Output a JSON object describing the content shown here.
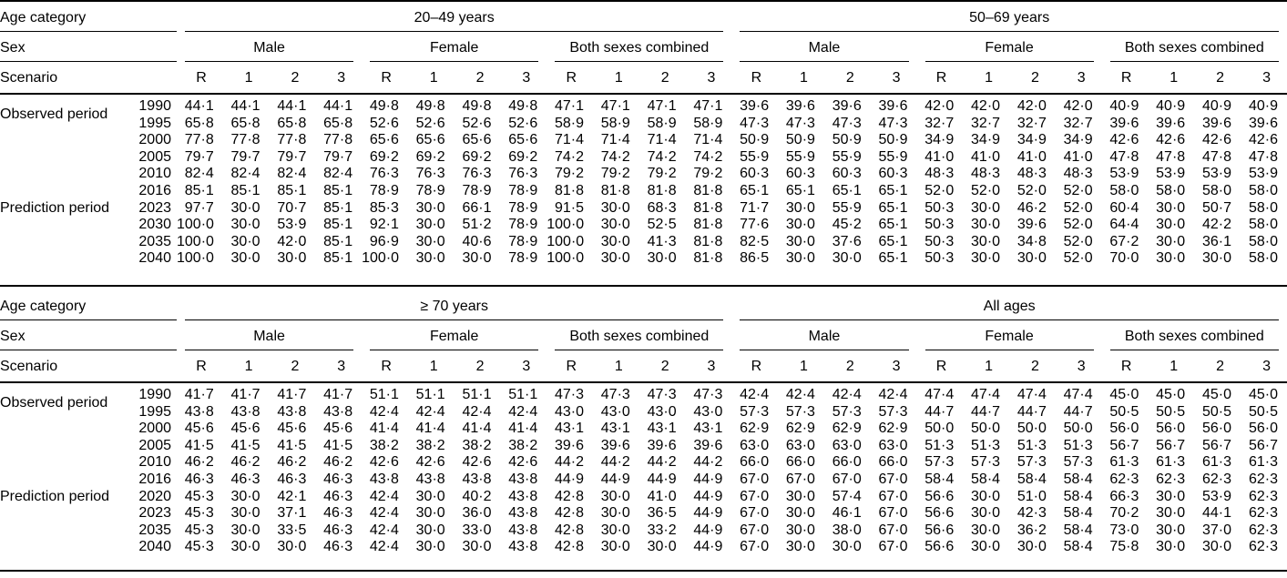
{
  "colors": {
    "text": "#000000",
    "rule": "#000000",
    "background": "#ffffff"
  },
  "labels": {
    "age_category": "Age category",
    "sex": "Sex",
    "scenario": "Scenario",
    "observed_period": "Observed period",
    "prediction_period": "Prediction period"
  },
  "sex_groups": [
    "Male",
    "Female",
    "Both sexes combined"
  ],
  "scenarios": [
    "R",
    "1",
    "2",
    "3"
  ],
  "panels": [
    {
      "age_groups": [
        "20–49 years",
        "50–69 years"
      ],
      "observed_rows": [
        {
          "year": "1990",
          "values": [
            "44·1",
            "44·1",
            "44·1",
            "44·1",
            "49·8",
            "49·8",
            "49·8",
            "49·8",
            "47·1",
            "47·1",
            "47·1",
            "47·1",
            "39·6",
            "39·6",
            "39·6",
            "39·6",
            "42·0",
            "42·0",
            "42·0",
            "42·0",
            "40·9",
            "40·9",
            "40·9",
            "40·9"
          ]
        },
        {
          "year": "1995",
          "values": [
            "65·8",
            "65·8",
            "65·8",
            "65·8",
            "52·6",
            "52·6",
            "52·6",
            "52·6",
            "58·9",
            "58·9",
            "58·9",
            "58·9",
            "47·3",
            "47·3",
            "47·3",
            "47·3",
            "32·7",
            "32·7",
            "32·7",
            "32·7",
            "39·6",
            "39·6",
            "39·6",
            "39·6"
          ]
        },
        {
          "year": "2000",
          "values": [
            "77·8",
            "77·8",
            "77·8",
            "77·8",
            "65·6",
            "65·6",
            "65·6",
            "65·6",
            "71·4",
            "71·4",
            "71·4",
            "71·4",
            "50·9",
            "50·9",
            "50·9",
            "50·9",
            "34·9",
            "34·9",
            "34·9",
            "34·9",
            "42·6",
            "42·6",
            "42·6",
            "42·6"
          ]
        },
        {
          "year": "2005",
          "values": [
            "79·7",
            "79·7",
            "79·7",
            "79·7",
            "69·2",
            "69·2",
            "69·2",
            "69·2",
            "74·2",
            "74·2",
            "74·2",
            "74·2",
            "55·9",
            "55·9",
            "55·9",
            "55·9",
            "41·0",
            "41·0",
            "41·0",
            "41·0",
            "47·8",
            "47·8",
            "47·8",
            "47·8"
          ]
        },
        {
          "year": "2010",
          "values": [
            "82·4",
            "82·4",
            "82·4",
            "82·4",
            "76·3",
            "76·3",
            "76·3",
            "76·3",
            "79·2",
            "79·2",
            "79·2",
            "79·2",
            "60·3",
            "60·3",
            "60·3",
            "60·3",
            "48·3",
            "48·3",
            "48·3",
            "48·3",
            "53·9",
            "53·9",
            "53·9",
            "53·9"
          ]
        },
        {
          "year": "2016",
          "values": [
            "85·1",
            "85·1",
            "85·1",
            "85·1",
            "78·9",
            "78·9",
            "78·9",
            "78·9",
            "81·8",
            "81·8",
            "81·8",
            "81·8",
            "65·1",
            "65·1",
            "65·1",
            "65·1",
            "52·0",
            "52·0",
            "52·0",
            "52·0",
            "58·0",
            "58·0",
            "58·0",
            "58·0"
          ]
        }
      ],
      "prediction_rows": [
        {
          "year": "2023",
          "values": [
            "97·7",
            "30·0",
            "70·7",
            "85·1",
            "85·3",
            "30·0",
            "66·1",
            "78·9",
            "91·5",
            "30·0",
            "68·3",
            "81·8",
            "71·7",
            "30·0",
            "55·9",
            "65·1",
            "50·3",
            "30·0",
            "46·2",
            "52·0",
            "60·4",
            "30·0",
            "50·7",
            "58·0"
          ]
        },
        {
          "year": "2030",
          "values": [
            "100·0",
            "30·0",
            "53·9",
            "85·1",
            "92·1",
            "30·0",
            "51·2",
            "78·9",
            "100·0",
            "30·0",
            "52·5",
            "81·8",
            "77·6",
            "30·0",
            "45·2",
            "65·1",
            "50·3",
            "30·0",
            "39·6",
            "52·0",
            "64·4",
            "30·0",
            "42·2",
            "58·0"
          ]
        },
        {
          "year": "2035",
          "values": [
            "100·0",
            "30·0",
            "42·0",
            "85·1",
            "96·9",
            "30·0",
            "40·6",
            "78·9",
            "100·0",
            "30·0",
            "41·3",
            "81·8",
            "82·5",
            "30·0",
            "37·6",
            "65·1",
            "50·3",
            "30·0",
            "34·8",
            "52·0",
            "67·2",
            "30·0",
            "36·1",
            "58·0"
          ]
        },
        {
          "year": "2040",
          "values": [
            "100·0",
            "30·0",
            "30·0",
            "85·1",
            "100·0",
            "30·0",
            "30·0",
            "78·9",
            "100·0",
            "30·0",
            "30·0",
            "81·8",
            "86·5",
            "30·0",
            "30·0",
            "65·1",
            "50·3",
            "30·0",
            "30·0",
            "52·0",
            "70·0",
            "30·0",
            "30·0",
            "58·0"
          ]
        }
      ]
    },
    {
      "age_groups": [
        "≥ 70 years",
        "All ages"
      ],
      "observed_rows": [
        {
          "year": "1990",
          "values": [
            "41·7",
            "41·7",
            "41·7",
            "41·7",
            "51·1",
            "51·1",
            "51·1",
            "51·1",
            "47·3",
            "47·3",
            "47·3",
            "47·3",
            "42·4",
            "42·4",
            "42·4",
            "42·4",
            "47·4",
            "47·4",
            "47·4",
            "47·4",
            "45·0",
            "45·0",
            "45·0",
            "45·0"
          ]
        },
        {
          "year": "1995",
          "values": [
            "43·8",
            "43·8",
            "43·8",
            "43·8",
            "42·4",
            "42·4",
            "42·4",
            "42·4",
            "43·0",
            "43·0",
            "43·0",
            "43·0",
            "57·3",
            "57·3",
            "57·3",
            "57·3",
            "44·7",
            "44·7",
            "44·7",
            "44·7",
            "50·5",
            "50·5",
            "50·5",
            "50·5"
          ]
        },
        {
          "year": "2000",
          "values": [
            "45·6",
            "45·6",
            "45·6",
            "45·6",
            "41·4",
            "41·4",
            "41·4",
            "41·4",
            "43·1",
            "43·1",
            "43·1",
            "43·1",
            "62·9",
            "62·9",
            "62·9",
            "62·9",
            "50·0",
            "50·0",
            "50·0",
            "50·0",
            "56·0",
            "56·0",
            "56·0",
            "56·0"
          ]
        },
        {
          "year": "2005",
          "values": [
            "41·5",
            "41·5",
            "41·5",
            "41·5",
            "38·2",
            "38·2",
            "38·2",
            "38·2",
            "39·6",
            "39·6",
            "39·6",
            "39·6",
            "63·0",
            "63·0",
            "63·0",
            "63·0",
            "51·3",
            "51·3",
            "51·3",
            "51·3",
            "56·7",
            "56·7",
            "56·7",
            "56·7"
          ]
        },
        {
          "year": "2010",
          "values": [
            "46·2",
            "46·2",
            "46·2",
            "46·2",
            "42·6",
            "42·6",
            "42·6",
            "42·6",
            "44·2",
            "44·2",
            "44·2",
            "44·2",
            "66·0",
            "66·0",
            "66·0",
            "66·0",
            "57·3",
            "57·3",
            "57·3",
            "57·3",
            "61·3",
            "61·3",
            "61·3",
            "61·3"
          ]
        },
        {
          "year": "2016",
          "values": [
            "46·3",
            "46·3",
            "46·3",
            "46·3",
            "43·8",
            "43·8",
            "43·8",
            "43·8",
            "44·9",
            "44·9",
            "44·9",
            "44·9",
            "67·0",
            "67·0",
            "67·0",
            "67·0",
            "58·4",
            "58·4",
            "58·4",
            "58·4",
            "62·3",
            "62·3",
            "62·3",
            "62·3"
          ]
        }
      ],
      "prediction_rows": [
        {
          "year": "2020",
          "values": [
            "45·3",
            "30·0",
            "42·1",
            "46·3",
            "42·4",
            "30·0",
            "40·2",
            "43·8",
            "42·8",
            "30·0",
            "41·0",
            "44·9",
            "67·0",
            "30·0",
            "57·4",
            "67·0",
            "56·6",
            "30·0",
            "51·0",
            "58·4",
            "66·3",
            "30·0",
            "53·9",
            "62·3"
          ]
        },
        {
          "year": "2023",
          "values": [
            "45·3",
            "30·0",
            "37·1",
            "46·3",
            "42·4",
            "30·0",
            "36·0",
            "43·8",
            "42·8",
            "30·0",
            "36·5",
            "44·9",
            "67·0",
            "30·0",
            "46·1",
            "67·0",
            "56·6",
            "30·0",
            "42·3",
            "58·4",
            "70·2",
            "30·0",
            "44·1",
            "62·3"
          ]
        },
        {
          "year": "2035",
          "values": [
            "45·3",
            "30·0",
            "33·5",
            "46·3",
            "42·4",
            "30·0",
            "33·0",
            "43·8",
            "42·8",
            "30·0",
            "33·2",
            "44·9",
            "67·0",
            "30·0",
            "38·0",
            "67·0",
            "56·6",
            "30·0",
            "36·2",
            "58·4",
            "73·0",
            "30·0",
            "37·0",
            "62·3"
          ]
        },
        {
          "year": "2040",
          "values": [
            "45·3",
            "30·0",
            "30·0",
            "46·3",
            "42·4",
            "30·0",
            "30·0",
            "43·8",
            "42·8",
            "30·0",
            "30·0",
            "44·9",
            "67·0",
            "30·0",
            "30·0",
            "67·0",
            "56·6",
            "30·0",
            "30·0",
            "58·4",
            "75·8",
            "30·0",
            "30·0",
            "62·3"
          ]
        }
      ]
    }
  ]
}
